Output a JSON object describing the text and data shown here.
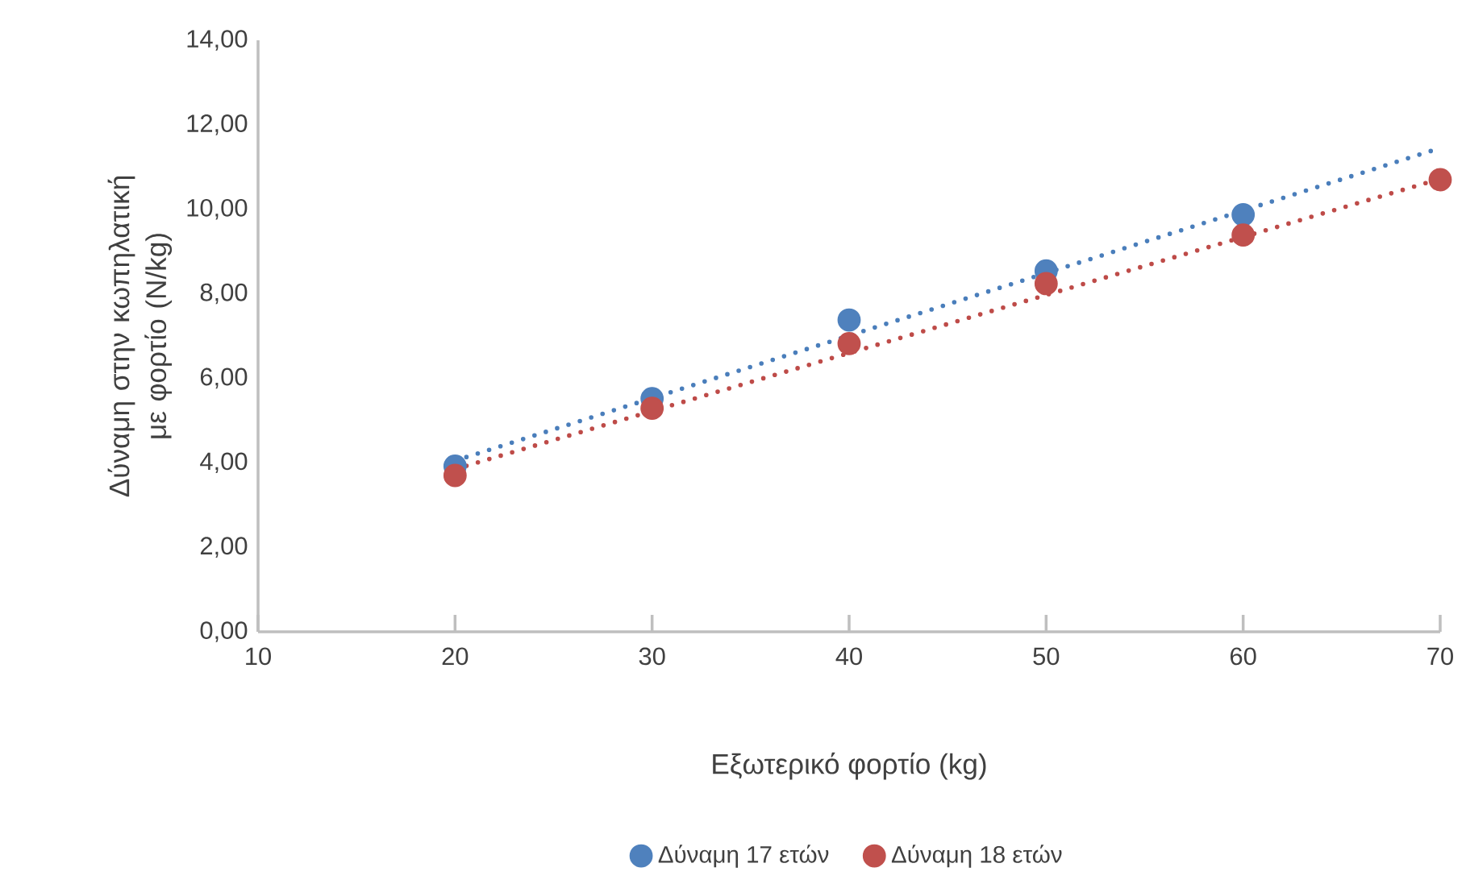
{
  "chart_data": {
    "type": "scatter",
    "xlabel": "Εξωτερικό φορτίο (kg)",
    "ylabel": "Δύναμη στην κωπηλατική με φορτίο (N/kg)",
    "xlim": [
      10,
      70
    ],
    "xticks": [
      10,
      20,
      30,
      40,
      50,
      60,
      70
    ],
    "ylim": [
      0,
      14
    ],
    "yticks": [
      {
        "value": 0,
        "label": "0,00"
      },
      {
        "value": 2,
        "label": "2,00"
      },
      {
        "value": 4,
        "label": "4,00"
      },
      {
        "value": 6,
        "label": "6,00"
      },
      {
        "value": 8,
        "label": "8,00"
      },
      {
        "value": 10,
        "label": "10,00"
      },
      {
        "value": 12,
        "label": "12,00"
      },
      {
        "value": 14,
        "label": "14,00"
      }
    ],
    "grid": false,
    "legend": "bottom",
    "series": [
      {
        "type": "line",
        "color": "#4a7ebb",
        "x": [
          20,
          70
        ],
        "values": [
          4.05,
          11.45
        ],
        "line_style": "dotted",
        "marker": "none"
      },
      {
        "type": "line",
        "color": "#be4b48",
        "x": [
          20,
          70
        ],
        "values": [
          3.85,
          10.72
        ],
        "line_style": "dotted"
      },
      {
        "name": "Δύναμη 17 ετών",
        "color": "#4f81bd",
        "marker": "circle",
        "x": [
          20,
          30,
          40,
          50,
          60
        ],
        "values": [
          3.92,
          5.52,
          7.38,
          8.54,
          9.87
        ]
      },
      {
        "name": "Δύναμη 18 ετών",
        "color": "#c0504d",
        "marker": "circle",
        "x": [
          20,
          30,
          40,
          50,
          60,
          70
        ],
        "values": [
          3.7,
          5.29,
          6.82,
          8.24,
          9.39,
          10.7
        ]
      }
    ]
  }
}
